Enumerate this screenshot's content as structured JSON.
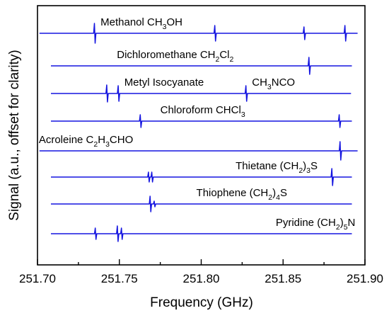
{
  "chart_data": {
    "type": "line",
    "xlabel": "Frequency (GHz)",
    "ylabel": "Signal (a.u., offset for clarity)",
    "xlim": [
      251.7,
      251.9
    ],
    "xticks": [
      "251.70",
      "251.75",
      "251.80",
      "251.85",
      "251.90"
    ],
    "xtick_values": [
      251.7,
      251.75,
      251.8,
      251.85,
      251.9
    ],
    "minor_xtick_values": [
      251.725,
      251.775,
      251.825,
      251.875
    ],
    "grid": false,
    "legend": "none",
    "series_color": "#1515e0",
    "series": [
      {
        "label_parts": [
          {
            "t": "Methanol CH",
            "sub": false
          },
          {
            "t": "3",
            "sub": true
          },
          {
            "t": "OH",
            "sub": false
          }
        ],
        "label_anchor": "start",
        "label_x": 251.7385,
        "x_range": [
          251.7012,
          251.8955
        ],
        "lines": [
          {
            "x": 251.735,
            "a": 14
          },
          {
            "x": 251.8085,
            "a": 11
          },
          {
            "x": 251.863,
            "a": 9
          },
          {
            "x": 251.888,
            "a": 11
          }
        ]
      },
      {
        "label_parts": [
          {
            "t": "Dichloromethane CH",
            "sub": false
          },
          {
            "t": "2",
            "sub": true
          },
          {
            "t": "Cl",
            "sub": false
          },
          {
            "t": "2",
            "sub": true
          }
        ],
        "label_anchor": "start",
        "label_x": 251.7485,
        "x_range": [
          251.7082,
          251.892
        ],
        "lines": [
          {
            "x": 251.866,
            "a": 12
          }
        ]
      },
      {
        "label_parts": [
          {
            "t": "Metyl Isocyanate",
            "sub": false
          }
        ],
        "label_anchor": "start",
        "label_x": 251.753,
        "x_range": [
          251.7082,
          251.8915
        ],
        "lines": [
          {
            "x": 251.7425,
            "a": 12
          },
          {
            "x": 251.7495,
            "a": 11
          },
          {
            "x": 251.8275,
            "a": 11
          }
        ]
      },
      {
        "label_parts": [
          {
            "t": "Chloroform CHCl",
            "sub": false
          },
          {
            "t": "3",
            "sub": true
          }
        ],
        "label_anchor": "start",
        "label_x": 251.775,
        "x_range": [
          251.7082,
          251.892
        ],
        "lines": [
          {
            "x": 251.763,
            "a": 9
          },
          {
            "x": 251.8845,
            "a": 9
          }
        ]
      },
      {
        "label_parts": [
          {
            "t": "Acroleine C",
            "sub": false
          },
          {
            "t": "2",
            "sub": true
          },
          {
            "t": "H",
            "sub": false
          },
          {
            "t": "3",
            "sub": true
          },
          {
            "t": "CHO",
            "sub": false
          }
        ],
        "label_anchor": "start",
        "label_x": 251.7008,
        "x_range": [
          251.7012,
          251.8955
        ],
        "lines": [
          {
            "x": 251.885,
            "a": 13
          }
        ]
      },
      {
        "label_parts": [
          {
            "t": "Thietane (CH",
            "sub": false
          },
          {
            "t": "2",
            "sub": true
          },
          {
            "t": ")",
            "sub": false
          },
          {
            "t": "3",
            "sub": true
          },
          {
            "t": "S",
            "sub": false
          }
        ],
        "label_anchor": "start",
        "label_x": 251.821,
        "x_range": [
          251.7082,
          251.892
        ],
        "lines": [
          {
            "x": 251.768,
            "a": 7
          },
          {
            "x": 251.77,
            "a": 7
          },
          {
            "x": 251.88,
            "a": 12
          }
        ]
      },
      {
        "label_parts": [
          {
            "t": "Thiophene (CH",
            "sub": false
          },
          {
            "t": "2",
            "sub": true
          },
          {
            "t": ")",
            "sub": false
          },
          {
            "t": "4",
            "sub": true
          },
          {
            "t": "S",
            "sub": false
          }
        ],
        "label_anchor": "start",
        "label_x": 251.797,
        "x_range": [
          251.7082,
          251.892
        ],
        "lines": [
          {
            "x": 251.769,
            "a": 11
          },
          {
            "x": 251.7715,
            "a": 4
          }
        ]
      },
      {
        "label_parts": [
          {
            "t": "Pyridine (CH",
            "sub": false
          },
          {
            "t": "2",
            "sub": true
          },
          {
            "t": ")",
            "sub": false
          },
          {
            "t": "5",
            "sub": true
          },
          {
            "t": "N",
            "sub": false
          }
        ],
        "label_anchor": "start",
        "label_x": 251.8455,
        "x_range": [
          251.7082,
          251.892
        ],
        "lines": [
          {
            "x": 251.7355,
            "a": 8
          },
          {
            "x": 251.749,
            "a": 11
          },
          {
            "x": 251.7515,
            "a": 8
          }
        ]
      }
    ],
    "annotations": [
      {
        "parts": [
          {
            "t": "CH",
            "sub": false
          },
          {
            "t": "3",
            "sub": true
          },
          {
            "t": "NCO",
            "sub": false
          }
        ],
        "x": 251.831,
        "row": 2
      }
    ]
  }
}
